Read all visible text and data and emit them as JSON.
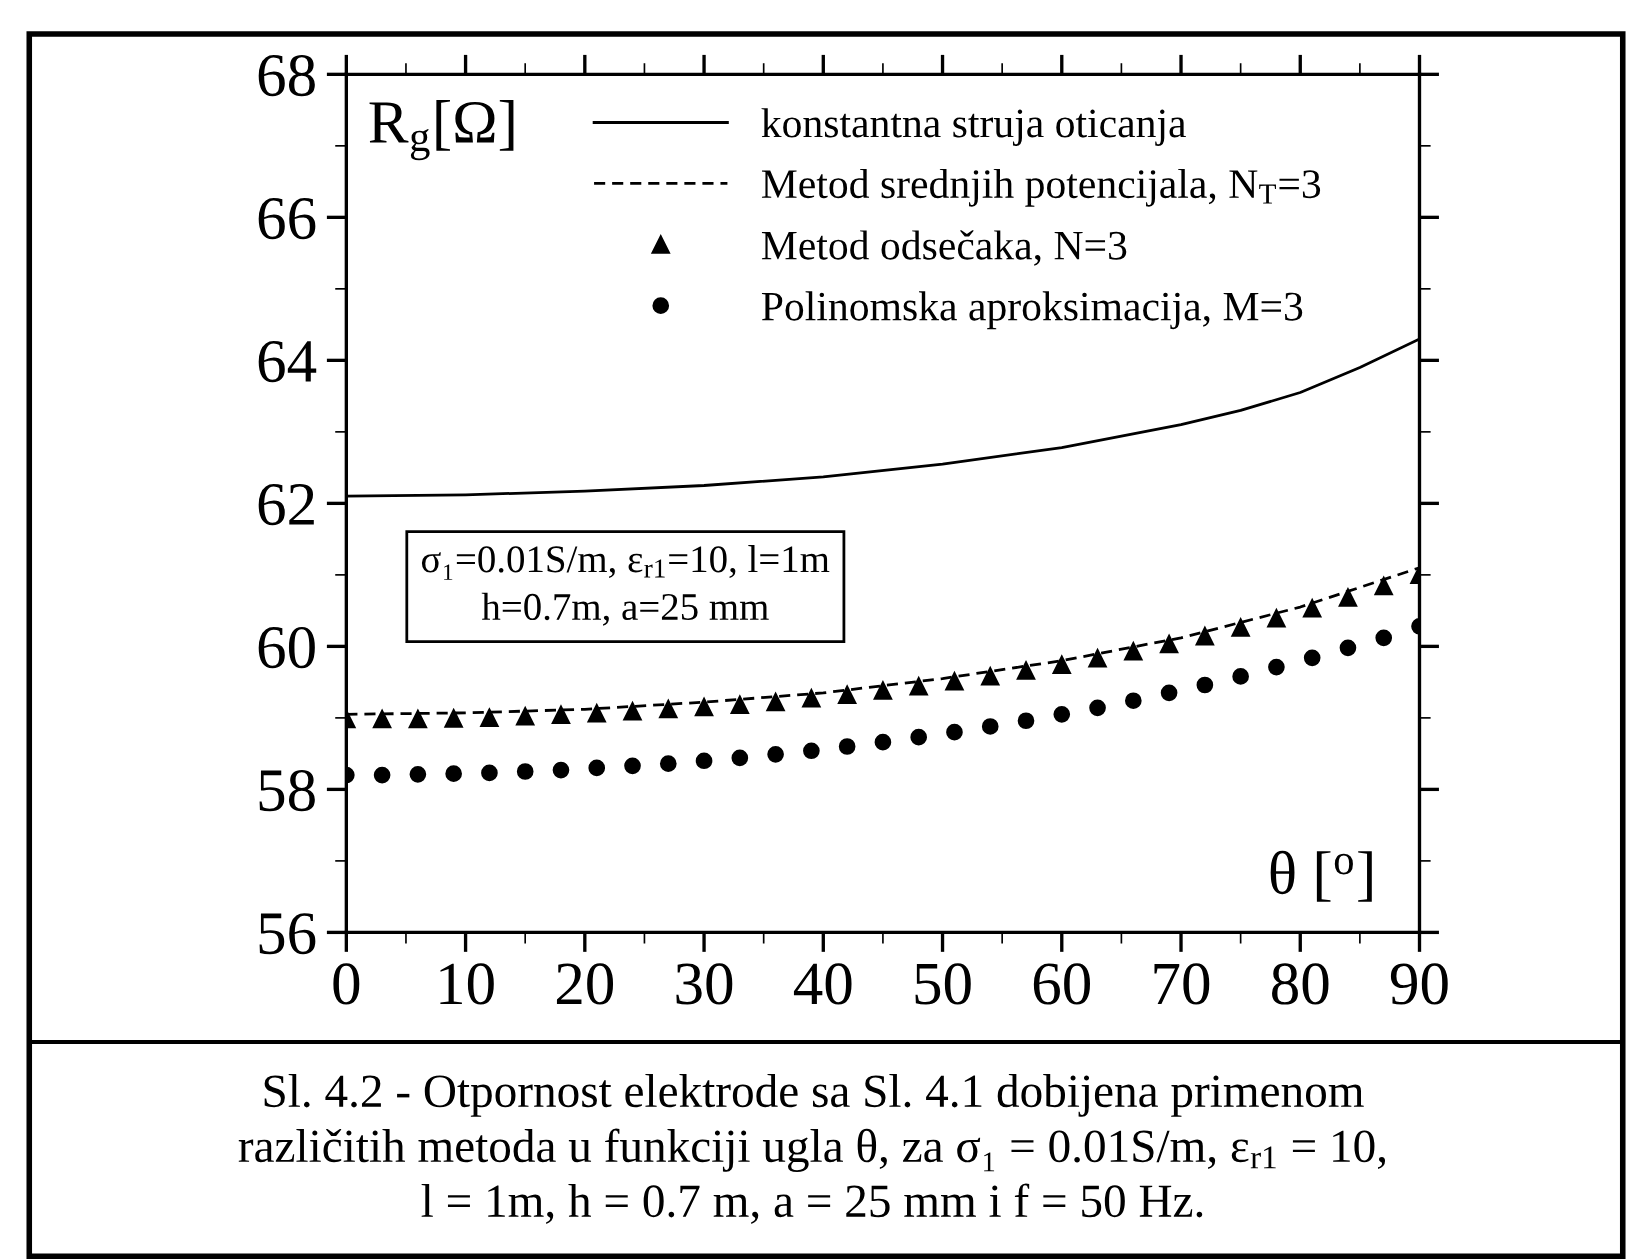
{
  "chart_data": {
    "type": "line",
    "xlabel": "θ [$^{o}$]",
    "ylabel": "R$_{g}$[Ω]",
    "xlim": [
      0,
      90
    ],
    "ylim": [
      56,
      68
    ],
    "xticks": [
      0,
      10,
      20,
      30,
      40,
      50,
      60,
      70,
      80,
      90
    ],
    "yticks": [
      56,
      58,
      60,
      62,
      64,
      66,
      68
    ],
    "grid": false,
    "legend": "top",
    "series": [
      {
        "name": "konstantna struja oticanja",
        "line_style": "solid",
        "marker": "none",
        "color": "#000000",
        "x": [
          0,
          10,
          20,
          30,
          40,
          50,
          60,
          70,
          75,
          80,
          85,
          90
        ],
        "values": [
          62.1,
          62.12,
          62.17,
          62.25,
          62.37,
          62.55,
          62.78,
          63.1,
          63.3,
          63.55,
          63.9,
          64.3
        ]
      },
      {
        "name": "Metod srednjih potencijala, N$_{T}$=3",
        "line_style": "dashed",
        "marker": "none",
        "color": "#000000",
        "x": [
          0,
          10,
          20,
          30,
          40,
          50,
          60,
          70,
          80,
          90
        ],
        "values": [
          59.05,
          59.07,
          59.12,
          59.22,
          59.35,
          59.55,
          59.8,
          60.12,
          60.55,
          61.1
        ]
      },
      {
        "name": "Metod odsečaka, N=3",
        "type": "scatter",
        "marker": "triangle",
        "color": "#000000",
        "x": [
          0,
          3,
          6,
          9,
          12,
          15,
          18,
          21,
          24,
          27,
          30,
          33,
          36,
          39,
          42,
          45,
          48,
          51,
          54,
          57,
          60,
          63,
          66,
          69,
          72,
          75,
          78,
          81,
          84,
          87,
          90
        ],
        "values": [
          58.98,
          58.98,
          58.98,
          58.99,
          59.0,
          59.02,
          59.04,
          59.06,
          59.09,
          59.12,
          59.15,
          59.18,
          59.22,
          59.27,
          59.32,
          59.38,
          59.44,
          59.51,
          59.58,
          59.66,
          59.74,
          59.83,
          59.93,
          60.03,
          60.14,
          60.26,
          60.39,
          60.53,
          60.68,
          60.84,
          61.0
        ]
      },
      {
        "name": "Polinomska aproksimacija, M=3",
        "type": "scatter",
        "marker": "circle",
        "color": "#000000",
        "x": [
          0,
          3,
          6,
          9,
          12,
          15,
          18,
          21,
          24,
          27,
          30,
          33,
          36,
          39,
          42,
          45,
          48,
          51,
          54,
          57,
          60,
          63,
          66,
          69,
          72,
          75,
          78,
          81,
          84,
          87,
          90
        ],
        "values": [
          58.2,
          58.2,
          58.21,
          58.22,
          58.23,
          58.25,
          58.27,
          58.3,
          58.33,
          58.36,
          58.4,
          58.44,
          58.49,
          58.54,
          58.6,
          58.66,
          58.73,
          58.8,
          58.88,
          58.96,
          59.05,
          59.14,
          59.24,
          59.35,
          59.46,
          59.58,
          59.71,
          59.84,
          59.98,
          60.12,
          60.28
        ]
      }
    ],
    "annotations": [
      "σ₁=0.01S/m, ε$_{r1}$=10, l=1m\nh=0.7m, a=25 mm",
      "Sl. 4.2 - Otpornost elektrode sa Sl. 4.1 dobijena primenom\nrazličitih metoda u funkciji ugla θ, za σ₁ = 0.01S/m, ε$_{r1}$ = 10,\nl = 1m, h = 0.7 m, a = 25 mm i f = 50 Hz."
    ]
  }
}
